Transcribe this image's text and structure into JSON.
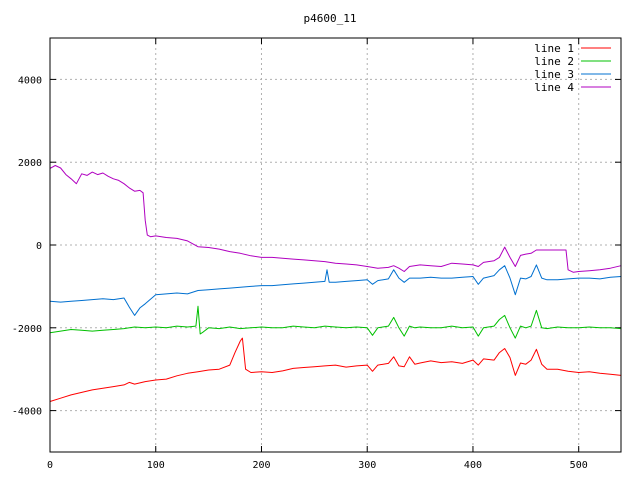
{
  "chart_data": {
    "type": "line",
    "title": "p4600_11",
    "xlabel": "",
    "ylabel": "",
    "xlim": [
      0,
      540
    ],
    "ylim": [
      -5000,
      5000
    ],
    "xticks": [
      0,
      100,
      200,
      300,
      400,
      500
    ],
    "yticks": [
      -4000,
      -2000,
      0,
      2000,
      4000
    ],
    "grid": true,
    "legend_position": "top-right",
    "series": [
      {
        "name": "line 1",
        "color": "#ff0000",
        "points": [
          [
            0,
            -3780
          ],
          [
            10,
            -3700
          ],
          [
            20,
            -3620
          ],
          [
            30,
            -3560
          ],
          [
            40,
            -3500
          ],
          [
            50,
            -3460
          ],
          [
            60,
            -3420
          ],
          [
            70,
            -3380
          ],
          [
            75,
            -3320
          ],
          [
            80,
            -3360
          ],
          [
            90,
            -3300
          ],
          [
            100,
            -3260
          ],
          [
            110,
            -3240
          ],
          [
            120,
            -3160
          ],
          [
            130,
            -3100
          ],
          [
            140,
            -3060
          ],
          [
            150,
            -3020
          ],
          [
            160,
            -3000
          ],
          [
            170,
            -2900
          ],
          [
            175,
            -2600
          ],
          [
            180,
            -2320
          ],
          [
            182,
            -2250
          ],
          [
            185,
            -3000
          ],
          [
            190,
            -3080
          ],
          [
            200,
            -3060
          ],
          [
            210,
            -3080
          ],
          [
            220,
            -3040
          ],
          [
            230,
            -2980
          ],
          [
            240,
            -2960
          ],
          [
            250,
            -2940
          ],
          [
            260,
            -2920
          ],
          [
            270,
            -2900
          ],
          [
            280,
            -2950
          ],
          [
            290,
            -2920
          ],
          [
            300,
            -2900
          ],
          [
            305,
            -3050
          ],
          [
            310,
            -2900
          ],
          [
            320,
            -2860
          ],
          [
            325,
            -2700
          ],
          [
            330,
            -2920
          ],
          [
            335,
            -2940
          ],
          [
            340,
            -2700
          ],
          [
            345,
            -2880
          ],
          [
            350,
            -2850
          ],
          [
            360,
            -2800
          ],
          [
            370,
            -2840
          ],
          [
            380,
            -2820
          ],
          [
            390,
            -2860
          ],
          [
            400,
            -2780
          ],
          [
            405,
            -2900
          ],
          [
            410,
            -2750
          ],
          [
            420,
            -2780
          ],
          [
            425,
            -2600
          ],
          [
            430,
            -2500
          ],
          [
            435,
            -2720
          ],
          [
            440,
            -3150
          ],
          [
            445,
            -2850
          ],
          [
            450,
            -2880
          ],
          [
            455,
            -2780
          ],
          [
            460,
            -2520
          ],
          [
            465,
            -2880
          ],
          [
            470,
            -3000
          ],
          [
            480,
            -3000
          ],
          [
            490,
            -3050
          ],
          [
            500,
            -3080
          ],
          [
            510,
            -3060
          ],
          [
            520,
            -3100
          ],
          [
            530,
            -3120
          ],
          [
            540,
            -3150
          ]
        ]
      },
      {
        "name": "line 2",
        "color": "#00c000",
        "points": [
          [
            0,
            -2120
          ],
          [
            10,
            -2080
          ],
          [
            20,
            -2040
          ],
          [
            30,
            -2060
          ],
          [
            40,
            -2080
          ],
          [
            50,
            -2060
          ],
          [
            60,
            -2040
          ],
          [
            70,
            -2020
          ],
          [
            80,
            -1980
          ],
          [
            90,
            -2000
          ],
          [
            100,
            -1980
          ],
          [
            110,
            -2000
          ],
          [
            120,
            -1960
          ],
          [
            130,
            -1980
          ],
          [
            138,
            -1960
          ],
          [
            140,
            -1480
          ],
          [
            142,
            -2150
          ],
          [
            145,
            -2100
          ],
          [
            150,
            -2000
          ],
          [
            160,
            -2020
          ],
          [
            170,
            -1980
          ],
          [
            180,
            -2020
          ],
          [
            190,
            -2000
          ],
          [
            200,
            -1980
          ],
          [
            210,
            -2000
          ],
          [
            220,
            -2000
          ],
          [
            230,
            -1960
          ],
          [
            240,
            -1980
          ],
          [
            250,
            -2000
          ],
          [
            260,
            -1960
          ],
          [
            270,
            -1980
          ],
          [
            280,
            -2000
          ],
          [
            290,
            -1980
          ],
          [
            300,
            -2000
          ],
          [
            305,
            -2180
          ],
          [
            310,
            -2000
          ],
          [
            320,
            -1960
          ],
          [
            325,
            -1750
          ],
          [
            330,
            -2000
          ],
          [
            335,
            -2200
          ],
          [
            340,
            -1960
          ],
          [
            345,
            -2000
          ],
          [
            350,
            -1980
          ],
          [
            360,
            -2000
          ],
          [
            370,
            -2000
          ],
          [
            380,
            -1960
          ],
          [
            390,
            -2000
          ],
          [
            400,
            -1980
          ],
          [
            405,
            -2200
          ],
          [
            410,
            -2000
          ],
          [
            420,
            -1960
          ],
          [
            425,
            -1800
          ],
          [
            430,
            -1700
          ],
          [
            435,
            -2000
          ],
          [
            440,
            -2250
          ],
          [
            445,
            -1960
          ],
          [
            450,
            -2000
          ],
          [
            455,
            -1960
          ],
          [
            460,
            -1580
          ],
          [
            465,
            -2000
          ],
          [
            470,
            -2020
          ],
          [
            480,
            -1980
          ],
          [
            490,
            -2000
          ],
          [
            500,
            -2000
          ],
          [
            510,
            -1980
          ],
          [
            520,
            -2000
          ],
          [
            530,
            -2000
          ],
          [
            540,
            -2020
          ]
        ]
      },
      {
        "name": "line 3",
        "color": "#0070d0",
        "points": [
          [
            0,
            -1360
          ],
          [
            10,
            -1380
          ],
          [
            20,
            -1360
          ],
          [
            30,
            -1340
          ],
          [
            40,
            -1320
          ],
          [
            50,
            -1300
          ],
          [
            60,
            -1320
          ],
          [
            70,
            -1280
          ],
          [
            75,
            -1500
          ],
          [
            80,
            -1700
          ],
          [
            85,
            -1520
          ],
          [
            90,
            -1420
          ],
          [
            100,
            -1200
          ],
          [
            110,
            -1180
          ],
          [
            120,
            -1160
          ],
          [
            130,
            -1180
          ],
          [
            140,
            -1100
          ],
          [
            150,
            -1080
          ],
          [
            160,
            -1060
          ],
          [
            170,
            -1040
          ],
          [
            180,
            -1020
          ],
          [
            190,
            -1000
          ],
          [
            200,
            -980
          ],
          [
            210,
            -980
          ],
          [
            220,
            -960
          ],
          [
            230,
            -940
          ],
          [
            240,
            -920
          ],
          [
            250,
            -900
          ],
          [
            260,
            -880
          ],
          [
            262,
            -600
          ],
          [
            264,
            -900
          ],
          [
            270,
            -900
          ],
          [
            280,
            -880
          ],
          [
            290,
            -860
          ],
          [
            300,
            -840
          ],
          [
            305,
            -950
          ],
          [
            310,
            -860
          ],
          [
            320,
            -820
          ],
          [
            325,
            -600
          ],
          [
            330,
            -800
          ],
          [
            335,
            -900
          ],
          [
            340,
            -800
          ],
          [
            350,
            -800
          ],
          [
            360,
            -780
          ],
          [
            370,
            -800
          ],
          [
            380,
            -800
          ],
          [
            390,
            -780
          ],
          [
            400,
            -760
          ],
          [
            405,
            -950
          ],
          [
            410,
            -800
          ],
          [
            420,
            -740
          ],
          [
            425,
            -600
          ],
          [
            430,
            -500
          ],
          [
            435,
            -800
          ],
          [
            440,
            -1200
          ],
          [
            445,
            -800
          ],
          [
            450,
            -820
          ],
          [
            455,
            -760
          ],
          [
            460,
            -480
          ],
          [
            465,
            -800
          ],
          [
            470,
            -840
          ],
          [
            480,
            -840
          ],
          [
            490,
            -820
          ],
          [
            500,
            -800
          ],
          [
            510,
            -800
          ],
          [
            520,
            -820
          ],
          [
            530,
            -780
          ],
          [
            540,
            -760
          ]
        ]
      },
      {
        "name": "line 4",
        "color": "#b000c0",
        "points": [
          [
            0,
            1850
          ],
          [
            5,
            1920
          ],
          [
            10,
            1860
          ],
          [
            15,
            1700
          ],
          [
            20,
            1600
          ],
          [
            25,
            1480
          ],
          [
            30,
            1720
          ],
          [
            35,
            1680
          ],
          [
            40,
            1760
          ],
          [
            45,
            1700
          ],
          [
            50,
            1740
          ],
          [
            55,
            1660
          ],
          [
            60,
            1600
          ],
          [
            65,
            1560
          ],
          [
            70,
            1480
          ],
          [
            75,
            1380
          ],
          [
            80,
            1300
          ],
          [
            85,
            1320
          ],
          [
            88,
            1260
          ],
          [
            90,
            600
          ],
          [
            92,
            240
          ],
          [
            95,
            200
          ],
          [
            100,
            220
          ],
          [
            110,
            180
          ],
          [
            120,
            160
          ],
          [
            130,
            100
          ],
          [
            140,
            -40
          ],
          [
            150,
            -60
          ],
          [
            160,
            -100
          ],
          [
            170,
            -160
          ],
          [
            180,
            -200
          ],
          [
            190,
            -260
          ],
          [
            200,
            -300
          ],
          [
            210,
            -300
          ],
          [
            220,
            -320
          ],
          [
            230,
            -340
          ],
          [
            240,
            -360
          ],
          [
            250,
            -380
          ],
          [
            260,
            -400
          ],
          [
            270,
            -440
          ],
          [
            280,
            -460
          ],
          [
            290,
            -480
          ],
          [
            300,
            -520
          ],
          [
            310,
            -560
          ],
          [
            320,
            -540
          ],
          [
            325,
            -500
          ],
          [
            330,
            -560
          ],
          [
            335,
            -640
          ],
          [
            340,
            -520
          ],
          [
            350,
            -480
          ],
          [
            360,
            -500
          ],
          [
            370,
            -520
          ],
          [
            380,
            -440
          ],
          [
            390,
            -460
          ],
          [
            400,
            -480
          ],
          [
            405,
            -520
          ],
          [
            410,
            -420
          ],
          [
            420,
            -380
          ],
          [
            425,
            -300
          ],
          [
            430,
            -50
          ],
          [
            435,
            -300
          ],
          [
            440,
            -520
          ],
          [
            445,
            -250
          ],
          [
            450,
            -220
          ],
          [
            455,
            -200
          ],
          [
            460,
            -120
          ],
          [
            470,
            -120
          ],
          [
            480,
            -120
          ],
          [
            488,
            -120
          ],
          [
            490,
            -600
          ],
          [
            495,
            -660
          ],
          [
            500,
            -640
          ],
          [
            510,
            -620
          ],
          [
            520,
            -600
          ],
          [
            530,
            -560
          ],
          [
            540,
            -500
          ]
        ]
      }
    ]
  }
}
